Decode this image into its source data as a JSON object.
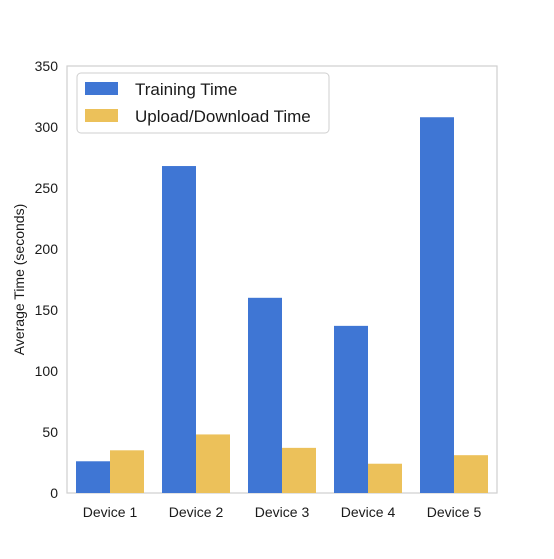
{
  "chart_data": {
    "type": "bar",
    "title": "",
    "xlabel": "",
    "ylabel": "Average Time (seconds)",
    "ylim": [
      0,
      350
    ],
    "yticks": [
      0,
      50,
      100,
      150,
      200,
      250,
      300,
      350
    ],
    "categories": [
      "Device 1",
      "Device 2",
      "Device 3",
      "Device 4",
      "Device 5"
    ],
    "series": [
      {
        "name": "Training Time",
        "color": "#3f76d4",
        "values": [
          26,
          268,
          160,
          137,
          308
        ]
      },
      {
        "name": "Upload/Download Time",
        "color": "#ecc15a",
        "values": [
          35,
          48,
          37,
          24,
          31
        ]
      }
    ],
    "legend_position": "top-left",
    "grid": false
  }
}
